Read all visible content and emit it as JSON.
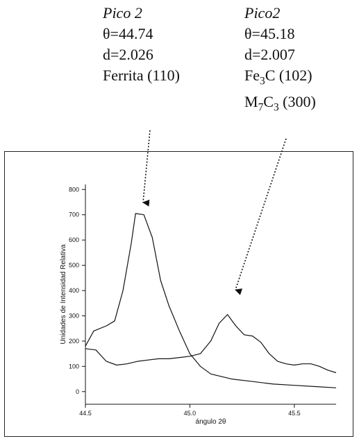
{
  "annotations": {
    "left": {
      "title": "Pico 2",
      "theta": "θ=44.74",
      "d": "d=2.026",
      "phase1": "Ferrita (110)"
    },
    "right": {
      "title": "Pico2",
      "theta": "θ=45.18",
      "d": "d=2.007",
      "phase1": "Fe3C (102)",
      "phase2": "M7C3 (300)"
    }
  },
  "chart_data": {
    "type": "line",
    "xlabel": "ángulo 2θ",
    "ylabel": "Unidades de Intensidad Relativa",
    "xlim": [
      44.5,
      45.7
    ],
    "ylim": [
      -50,
      820
    ],
    "xticks": [
      44.5,
      45.0,
      45.5
    ],
    "xtick_labels": [
      "44.5",
      "45.0",
      "45.5"
    ],
    "yticks": [
      0,
      100,
      200,
      300,
      400,
      500,
      600,
      700,
      800
    ],
    "ytick_labels": [
      "0",
      "100",
      "200",
      "300",
      "400",
      "500",
      "600",
      "700",
      "800"
    ],
    "grid": false,
    "series": [
      {
        "x": [
          44.5,
          44.54,
          44.6,
          44.64,
          44.68,
          44.72,
          44.74,
          44.78,
          44.82,
          44.86,
          44.9,
          44.95,
          45.0,
          45.05,
          45.1,
          45.2,
          45.3,
          45.4,
          45.5,
          45.6,
          45.7
        ],
        "values": [
          180,
          240,
          260,
          280,
          400,
          590,
          705,
          700,
          610,
          440,
          340,
          240,
          150,
          100,
          70,
          50,
          40,
          30,
          25,
          20,
          15
        ]
      },
      {
        "x": [
          44.5,
          44.55,
          44.6,
          44.65,
          44.7,
          44.75,
          44.8,
          44.85,
          44.9,
          44.95,
          45.0,
          45.05,
          45.1,
          45.14,
          45.18,
          45.22,
          45.26,
          45.3,
          45.34,
          45.38,
          45.42,
          45.46,
          45.5,
          45.54,
          45.58,
          45.62,
          45.66,
          45.7
        ],
        "values": [
          170,
          165,
          120,
          105,
          110,
          120,
          125,
          130,
          130,
          135,
          140,
          150,
          200,
          270,
          305,
          260,
          225,
          220,
          195,
          150,
          120,
          110,
          105,
          110,
          110,
          100,
          85,
          75
        ]
      }
    ]
  }
}
